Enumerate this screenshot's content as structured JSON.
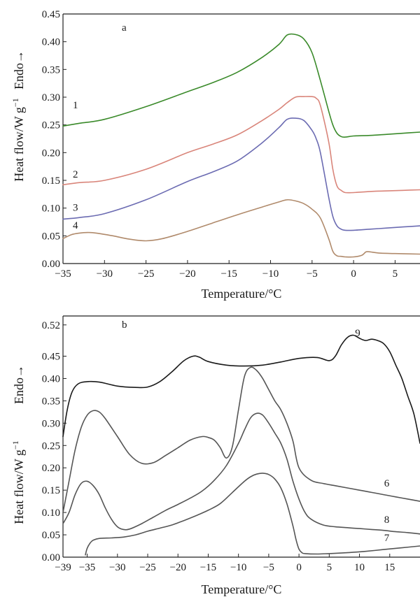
{
  "chart_data": [
    {
      "type": "line",
      "panel_label": "a",
      "xlabel": "Temperature/°C",
      "ylabel_main": "Heat flow/W g",
      "ylabel_sup": "−1",
      "ylabel_endo": "Endo→",
      "xlim": [
        -35,
        8
      ],
      "ylim": [
        0.0,
        0.45
      ],
      "x_ticks": [
        -35,
        -30,
        -25,
        -20,
        -15,
        -10,
        -5,
        0,
        5
      ],
      "x_tick_labels": [
        "−35",
        "−30",
        "−25",
        "−20",
        "−15",
        "−10",
        "−5",
        "0",
        "5"
      ],
      "y_ticks": [
        0,
        0.05,
        0.1,
        0.15,
        0.2,
        0.25,
        0.3,
        0.35,
        0.4,
        0.45
      ],
      "y_tick_labels": [
        "0.00",
        "0.05",
        "0.10",
        "0.15",
        "0.20",
        "0.25",
        "0.30",
        "0.35",
        "0.40",
        "0.45"
      ],
      "series": [
        {
          "label": "1",
          "color": "#3a8a2a",
          "x": [
            -35,
            -33,
            -30,
            -25,
            -20,
            -17,
            -14,
            -11,
            -9,
            -8,
            -7,
            -6,
            -5,
            -4,
            -3,
            -2.5,
            -2,
            -1.5,
            -1,
            0,
            2,
            4,
            6,
            8
          ],
          "y": [
            0.248,
            0.253,
            0.26,
            0.283,
            0.31,
            0.326,
            0.345,
            0.372,
            0.395,
            0.412,
            0.413,
            0.405,
            0.38,
            0.33,
            0.275,
            0.25,
            0.235,
            0.229,
            0.228,
            0.23,
            0.231,
            0.233,
            0.235,
            0.237
          ],
          "label_at": [
            -33.5,
            0.28
          ]
        },
        {
          "label": "2",
          "color": "#d9857a",
          "x": [
            -35,
            -33,
            -30,
            -25,
            -20,
            -17,
            -14,
            -11,
            -9,
            -8,
            -7,
            -6,
            -5,
            -4.5,
            -4,
            -3,
            -2.5,
            -2,
            -1.5,
            -1,
            0,
            2,
            4,
            6,
            8
          ],
          "y": [
            0.142,
            0.146,
            0.15,
            0.17,
            0.2,
            0.215,
            0.232,
            0.258,
            0.278,
            0.29,
            0.3,
            0.301,
            0.301,
            0.298,
            0.285,
            0.22,
            0.17,
            0.14,
            0.132,
            0.128,
            0.128,
            0.13,
            0.131,
            0.132,
            0.133
          ],
          "label_at": [
            -33.5,
            0.155
          ]
        },
        {
          "label": "3",
          "color": "#6b6bb2",
          "x": [
            -35,
            -33,
            -30,
            -25,
            -20,
            -17,
            -14,
            -11,
            -9,
            -8,
            -7,
            -6,
            -5,
            -4.5,
            -4,
            -3,
            -2.5,
            -2,
            -1.5,
            -1,
            0,
            2,
            4,
            6,
            8
          ],
          "y": [
            0.08,
            0.083,
            0.09,
            0.115,
            0.148,
            0.165,
            0.185,
            0.218,
            0.245,
            0.26,
            0.262,
            0.258,
            0.24,
            0.225,
            0.2,
            0.12,
            0.085,
            0.068,
            0.062,
            0.06,
            0.06,
            0.062,
            0.064,
            0.066,
            0.068
          ],
          "label_at": [
            -33.5,
            0.095
          ]
        },
        {
          "label": "4",
          "color": "#b08a6b",
          "x": [
            -35,
            -34,
            -33,
            -32,
            -31,
            -29,
            -27,
            -25,
            -23,
            -20,
            -17,
            -14,
            -11,
            -9,
            -8,
            -7,
            -6,
            -5,
            -4,
            -3,
            -2.5,
            -2,
            -1.5,
            -1,
            0,
            1,
            1.5,
            2,
            3,
            5,
            8
          ],
          "y": [
            0.045,
            0.052,
            0.055,
            0.056,
            0.055,
            0.05,
            0.044,
            0.041,
            0.045,
            0.058,
            0.073,
            0.088,
            0.102,
            0.111,
            0.115,
            0.113,
            0.108,
            0.098,
            0.082,
            0.045,
            0.022,
            0.014,
            0.013,
            0.012,
            0.012,
            0.015,
            0.021,
            0.021,
            0.019,
            0.018,
            0.017
          ],
          "label_at": [
            -33.5,
            0.063
          ]
        }
      ]
    },
    {
      "type": "line",
      "panel_label": "b",
      "xlabel": "Temperature/°C",
      "ylabel_main": "Heat flow/W g",
      "ylabel_sup": "−1",
      "ylabel_endo": "Endo→",
      "xlim": [
        -39,
        20
      ],
      "ylim": [
        0.0,
        0.54
      ],
      "x_ticks": [
        -39,
        -35,
        -30,
        -25,
        -20,
        -15,
        -10,
        -5,
        0,
        5,
        10,
        15
      ],
      "x_tick_labels": [
        "−39",
        "−35",
        "−30",
        "−25",
        "−20",
        "−15",
        "−10",
        "−5",
        "0",
        "5",
        "10",
        "15"
      ],
      "y_ticks": [
        0,
        0.05,
        0.1,
        0.15,
        0.2,
        0.25,
        0.3,
        0.35,
        0.4,
        0.45,
        0.52
      ],
      "y_tick_labels": [
        "0.00",
        "0.05",
        "0.10",
        "0.15",
        "0.20",
        "0.25",
        "0.30",
        "0.35",
        "0.40",
        "0.45",
        "0.52"
      ],
      "series": [
        {
          "label": "9",
          "color": "#1a1a1a",
          "x": [
            -39,
            -38.3,
            -37.5,
            -36.5,
            -35,
            -33,
            -30,
            -27,
            -25,
            -23,
            -21,
            -19,
            -17.5,
            -16.5,
            -15,
            -12,
            -9,
            -6,
            -3,
            0,
            3,
            5,
            6,
            7,
            8,
            9,
            10,
            11,
            12,
            13,
            14,
            15,
            16,
            17,
            18,
            19,
            20
          ],
          "y": [
            0.27,
            0.33,
            0.37,
            0.388,
            0.393,
            0.392,
            0.383,
            0.38,
            0.381,
            0.393,
            0.415,
            0.44,
            0.45,
            0.448,
            0.438,
            0.43,
            0.428,
            0.43,
            0.437,
            0.445,
            0.447,
            0.44,
            0.45,
            0.475,
            0.492,
            0.497,
            0.49,
            0.485,
            0.488,
            0.485,
            0.478,
            0.46,
            0.43,
            0.4,
            0.36,
            0.32,
            0.255
          ],
          "label_at": [
            9.7,
            0.495
          ]
        },
        {
          "label": "6",
          "color": "#555555",
          "x": [
            -39,
            -38,
            -37,
            -36,
            -35,
            -34,
            -33,
            -32,
            -30,
            -28,
            -26,
            -24,
            -22,
            -20,
            -18,
            -16,
            -15,
            -14,
            -13,
            -12,
            -11,
            -10,
            -9,
            -8,
            -7,
            -6,
            -5,
            -4,
            -3,
            -2,
            -1,
            0,
            2,
            4,
            6,
            8,
            10,
            12,
            14,
            16,
            18,
            20
          ],
          "y": [
            0.1,
            0.17,
            0.24,
            0.29,
            0.318,
            0.328,
            0.325,
            0.31,
            0.27,
            0.23,
            0.21,
            0.212,
            0.228,
            0.245,
            0.262,
            0.27,
            0.268,
            0.262,
            0.245,
            0.222,
            0.248,
            0.33,
            0.405,
            0.425,
            0.418,
            0.4,
            0.375,
            0.35,
            0.33,
            0.3,
            0.26,
            0.2,
            0.172,
            0.165,
            0.16,
            0.155,
            0.15,
            0.145,
            0.14,
            0.135,
            0.13,
            0.125
          ],
          "label_at": [
            14.5,
            0.158
          ]
        },
        {
          "label": "8",
          "color": "#555555",
          "x": [
            -39,
            -38,
            -37,
            -36,
            -35,
            -34,
            -33,
            -32,
            -31,
            -30,
            -29,
            -28,
            -26,
            -24,
            -22,
            -20,
            -18,
            -16,
            -14,
            -12,
            -10,
            -9,
            -8,
            -7,
            -6,
            -5,
            -4,
            -3,
            -2,
            -1,
            0,
            1,
            2,
            4,
            6,
            8,
            10,
            12,
            14,
            16,
            18,
            20
          ],
          "y": [
            0.075,
            0.1,
            0.14,
            0.165,
            0.17,
            0.16,
            0.14,
            0.11,
            0.085,
            0.068,
            0.062,
            0.063,
            0.075,
            0.09,
            0.105,
            0.118,
            0.132,
            0.148,
            0.172,
            0.205,
            0.255,
            0.285,
            0.312,
            0.322,
            0.318,
            0.3,
            0.278,
            0.255,
            0.22,
            0.17,
            0.13,
            0.1,
            0.085,
            0.072,
            0.068,
            0.066,
            0.064,
            0.062,
            0.06,
            0.057,
            0.055,
            0.052
          ],
          "label_at": [
            14.5,
            0.077
          ]
        },
        {
          "label": "7",
          "color": "#555555",
          "x": [
            -35.3,
            -35,
            -34.5,
            -34,
            -33,
            -31,
            -29,
            -27,
            -25,
            -23,
            -21,
            -19,
            -17,
            -15,
            -13,
            -11,
            -9,
            -8,
            -7,
            -6,
            -5,
            -4,
            -3,
            -2,
            -1,
            -0.5,
            0,
            0.5,
            1,
            3,
            5,
            8,
            11,
            14,
            17,
            20
          ],
          "y": [
            0.005,
            0.02,
            0.032,
            0.038,
            0.042,
            0.043,
            0.045,
            0.05,
            0.058,
            0.065,
            0.072,
            0.082,
            0.093,
            0.105,
            0.12,
            0.145,
            0.17,
            0.18,
            0.186,
            0.188,
            0.185,
            0.175,
            0.155,
            0.12,
            0.07,
            0.04,
            0.018,
            0.01,
            0.008,
            0.007,
            0.008,
            0.01,
            0.013,
            0.017,
            0.021,
            0.025
          ],
          "label_at": [
            14.5,
            0.036
          ]
        }
      ]
    }
  ]
}
